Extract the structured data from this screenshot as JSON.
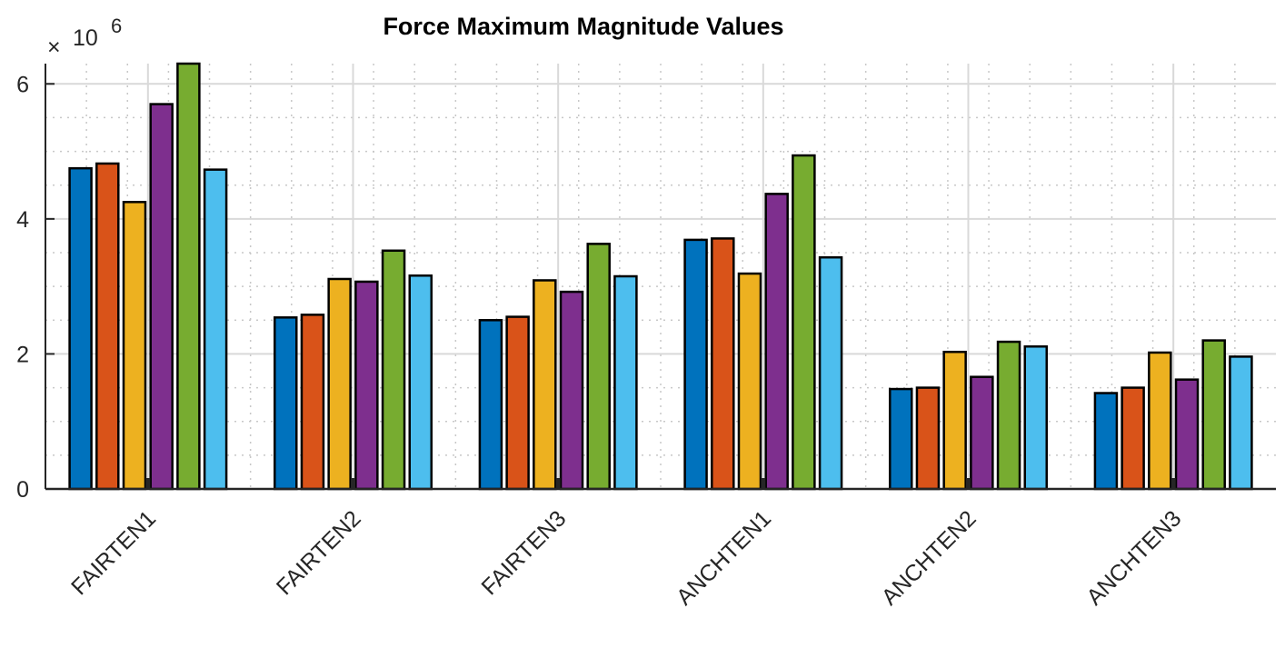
{
  "chart_data": {
    "type": "bar",
    "title": "Force Maximum Magnitude Values",
    "exponent_prefix": "×",
    "exponent_base": "10",
    "exponent_power": "6",
    "ylim": [
      0,
      6.3
    ],
    "yticks": [
      0,
      2,
      4,
      6
    ],
    "ytick_labels": [
      "0",
      "2",
      "4",
      "6"
    ],
    "grid": true,
    "minor_grid": true,
    "categories": [
      "FAIRTEN1",
      "FAIRTEN2",
      "FAIRTEN3",
      "ANCHTEN1",
      "ANCHTEN2",
      "ANCHTEN3"
    ],
    "series": [
      {
        "color": "#0072BD",
        "values": [
          4.75,
          2.54,
          2.5,
          3.69,
          1.48,
          1.42
        ]
      },
      {
        "color": "#D95319",
        "values": [
          4.82,
          2.58,
          2.55,
          3.71,
          1.5,
          1.5
        ]
      },
      {
        "color": "#EDB120",
        "values": [
          4.25,
          3.11,
          3.09,
          3.19,
          2.03,
          2.02
        ]
      },
      {
        "color": "#7E2F8E",
        "values": [
          5.7,
          3.07,
          2.92,
          4.37,
          1.66,
          1.62
        ]
      },
      {
        "color": "#77AC30",
        "values": [
          6.3,
          3.53,
          3.63,
          4.94,
          2.18,
          2.2
        ]
      },
      {
        "color": "#4DBEEE",
        "values": [
          4.73,
          3.16,
          3.15,
          3.43,
          2.11,
          1.96
        ]
      }
    ]
  }
}
